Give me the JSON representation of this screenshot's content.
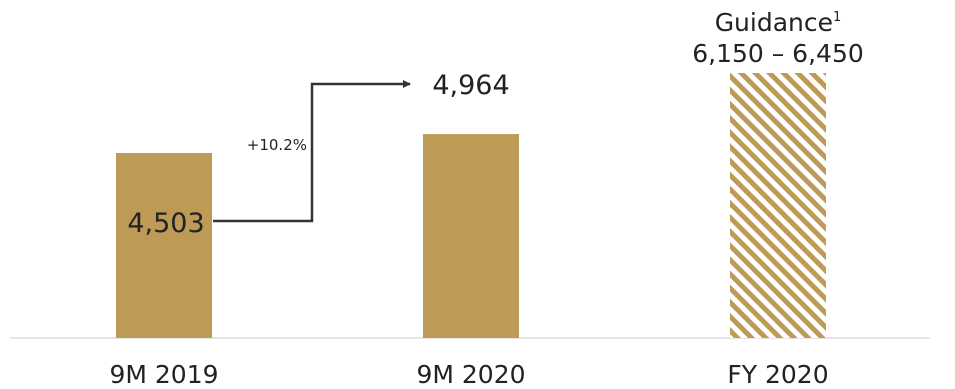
{
  "chart_data": {
    "type": "bar",
    "categories": [
      "9M 2019",
      "9M 2020",
      "FY 2020"
    ],
    "values": [
      4503,
      4964,
      null
    ],
    "value_labels": [
      "4,503",
      "4,964",
      null
    ],
    "guidance": {
      "label": "Guidance",
      "footnote_marker": "1",
      "range_label": "6,150 – 6,450",
      "low": 6150,
      "high": 6450
    },
    "growth_annotation": "+10.2%",
    "ylim": [
      0,
      6450
    ],
    "bar_color": "#bd9a56",
    "axis_color": "#cccccc",
    "arrow_color": "#333333",
    "grid": false
  }
}
